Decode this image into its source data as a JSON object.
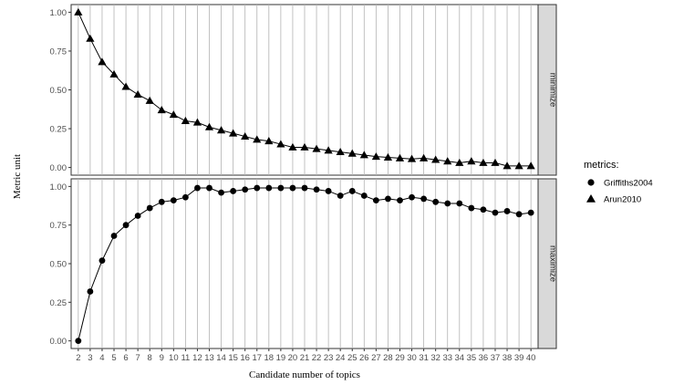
{
  "chart_data": {
    "type": "line",
    "xlabel": "Candidate number of topics",
    "ylabel": "Metric unit",
    "x": [
      2,
      3,
      4,
      5,
      6,
      7,
      8,
      9,
      10,
      11,
      12,
      13,
      14,
      15,
      16,
      17,
      18,
      19,
      20,
      21,
      22,
      23,
      24,
      25,
      26,
      27,
      28,
      29,
      30,
      31,
      32,
      33,
      34,
      35,
      36,
      37,
      38,
      39,
      40
    ],
    "y_ticks": [
      "0.00",
      "0.25",
      "0.50",
      "0.75",
      "1.00"
    ],
    "ylim": [
      0,
      1
    ],
    "grid": "vertical",
    "legend": {
      "title": "metrics:",
      "position": "right",
      "entries": [
        {
          "label": "Griffiths2004",
          "marker": "circle"
        },
        {
          "label": "Arun2010",
          "marker": "triangle"
        }
      ]
    },
    "panels": [
      {
        "strip_label": "minimize",
        "series": [
          {
            "name": "Arun2010",
            "marker": "triangle",
            "values": [
              1.0,
              0.83,
              0.68,
              0.6,
              0.52,
              0.47,
              0.43,
              0.37,
              0.34,
              0.3,
              0.29,
              0.26,
              0.24,
              0.22,
              0.2,
              0.18,
              0.17,
              0.15,
              0.13,
              0.13,
              0.12,
              0.11,
              0.1,
              0.09,
              0.08,
              0.07,
              0.065,
              0.06,
              0.055,
              0.06,
              0.05,
              0.04,
              0.03,
              0.04,
              0.03,
              0.03,
              0.01,
              0.01,
              0.01
            ]
          }
        ]
      },
      {
        "strip_label": "maximize",
        "series": [
          {
            "name": "Griffiths2004",
            "marker": "circle",
            "values": [
              0.0,
              0.32,
              0.52,
              0.68,
              0.75,
              0.81,
              0.86,
              0.9,
              0.91,
              0.93,
              0.99,
              0.99,
              0.96,
              0.97,
              0.98,
              0.99,
              0.99,
              0.99,
              0.99,
              0.99,
              0.98,
              0.97,
              0.94,
              0.97,
              0.94,
              0.91,
              0.92,
              0.91,
              0.93,
              0.92,
              0.9,
              0.89,
              0.89,
              0.86,
              0.85,
              0.83,
              0.84,
              0.82,
              0.83
            ]
          }
        ]
      }
    ]
  }
}
